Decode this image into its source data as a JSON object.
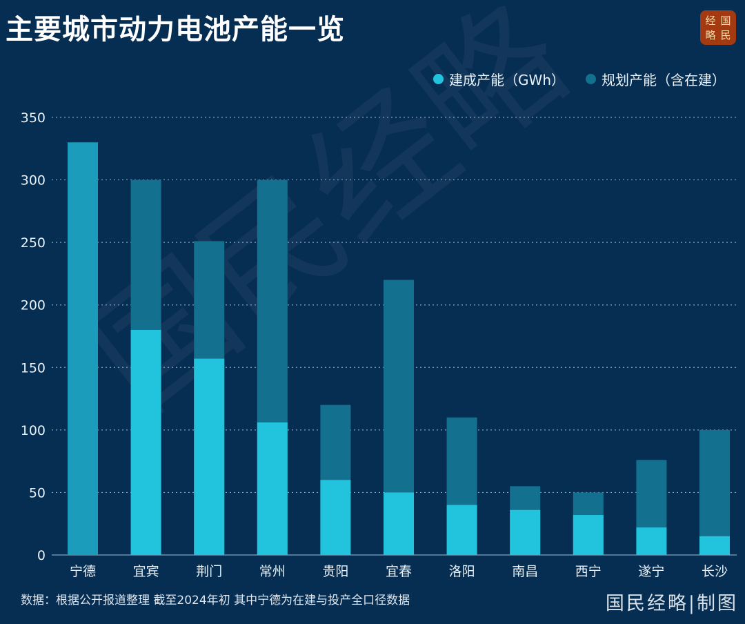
{
  "header": {
    "title": "主要城市动力电池产能一览"
  },
  "logo": {
    "chars": [
      "经",
      "国",
      "略",
      "民"
    ]
  },
  "watermark": "国民经略",
  "footer": {
    "source": "数据：根据公开报道整理 截至2024年初 其中宁德为在建与投产全口径数据",
    "credit": "国民经略|制图"
  },
  "colors": {
    "background": "#062d52",
    "built": "#22c3dc",
    "planned": "#13708f",
    "combined": "#1a9cba"
  },
  "chart_data": {
    "type": "bar",
    "stacked": "overlay",
    "title": "主要城市动力电池产能一览",
    "categories": [
      "宁德",
      "宜宾",
      "荆门",
      "常州",
      "贵阳",
      "宜春",
      "洛阳",
      "南昌",
      "西宁",
      "遂宁",
      "长沙"
    ],
    "series": [
      {
        "name": "建成产能（GWh）",
        "values": [
          null,
          180,
          157,
          106,
          60,
          50,
          40,
          36,
          32,
          22,
          15
        ]
      },
      {
        "name": "规划产能（含在建）",
        "values": [
          330,
          300,
          251,
          300,
          120,
          220,
          110,
          55,
          50,
          76,
          100
        ]
      }
    ],
    "notes": "宁德为在建与投产全口径数据(单色显示)",
    "ylim": [
      0,
      350
    ],
    "yticks": [
      0,
      50,
      100,
      150,
      200,
      250,
      300,
      350
    ],
    "xlabel": "",
    "ylabel": "",
    "grid": "horizontal dotted",
    "legend_position": "top-right"
  }
}
